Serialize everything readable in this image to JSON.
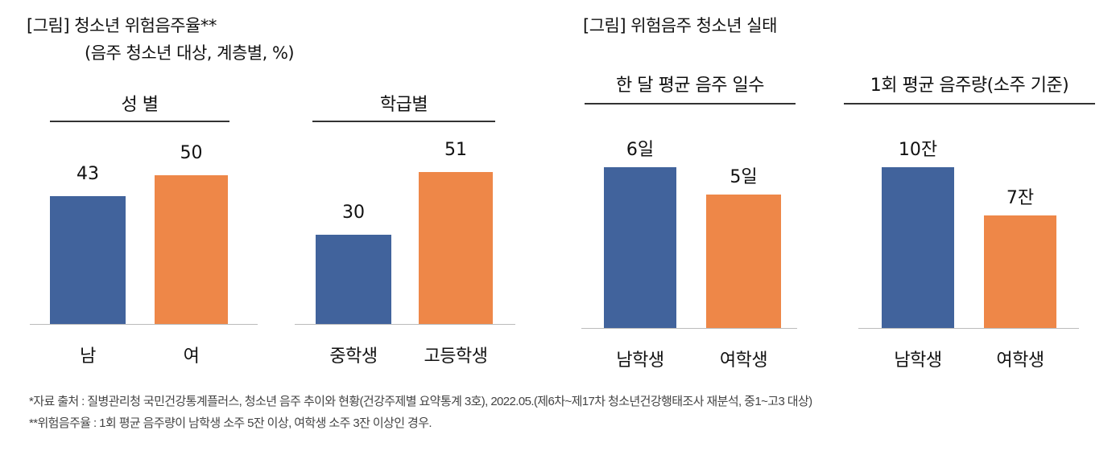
{
  "left_title": "[그림] 청소년 위험음주율**",
  "left_subtitle": "(음주 청소년 대상, 계층별, %)",
  "right_title": "[그림] 위험음주 청소년 실태",
  "colors": {
    "blue": "#41639c",
    "orange": "#ee8748"
  },
  "chart_data": [
    {
      "type": "bar",
      "title": "성  별",
      "categories": [
        "남",
        "여"
      ],
      "values": [
        43,
        50
      ],
      "value_labels": [
        "43",
        "50"
      ],
      "unit": "%",
      "ylim": [
        0,
        54
      ]
    },
    {
      "type": "bar",
      "title": "학급별",
      "categories": [
        "중학생",
        "고등학생"
      ],
      "values": [
        30,
        51
      ],
      "value_labels": [
        "30",
        "51"
      ],
      "unit": "%",
      "ylim": [
        0,
        54
      ]
    },
    {
      "type": "bar",
      "title": "한 달 평균 음주 일수",
      "categories": [
        "남학생",
        "여학생"
      ],
      "values": [
        6,
        5
      ],
      "value_labels": [
        "6일",
        "5일"
      ],
      "unit": "일",
      "ylim": [
        0,
        6
      ]
    },
    {
      "type": "bar",
      "title": "1회 평균 음주량(소주 기준)",
      "categories": [
        "남학생",
        "여학생"
      ],
      "values": [
        10,
        7
      ],
      "value_labels": [
        "10잔",
        "7잔"
      ],
      "unit": "잔",
      "ylim": [
        0,
        10
      ]
    }
  ],
  "notes": [
    "*자료 출처 : 질병관리청 국민건강통계플러스, 청소년 음주 추이와 현황(건강주제별 요약통계 3호), 2022.05.(제6차~제17차 청소년건강행태조사 재분석, 중1~고3 대상)",
    "**위험음주율 : 1회 평균 음주량이 남학생 소주 5잔 이상, 여학생 소주 3잔 이상인 경우."
  ]
}
